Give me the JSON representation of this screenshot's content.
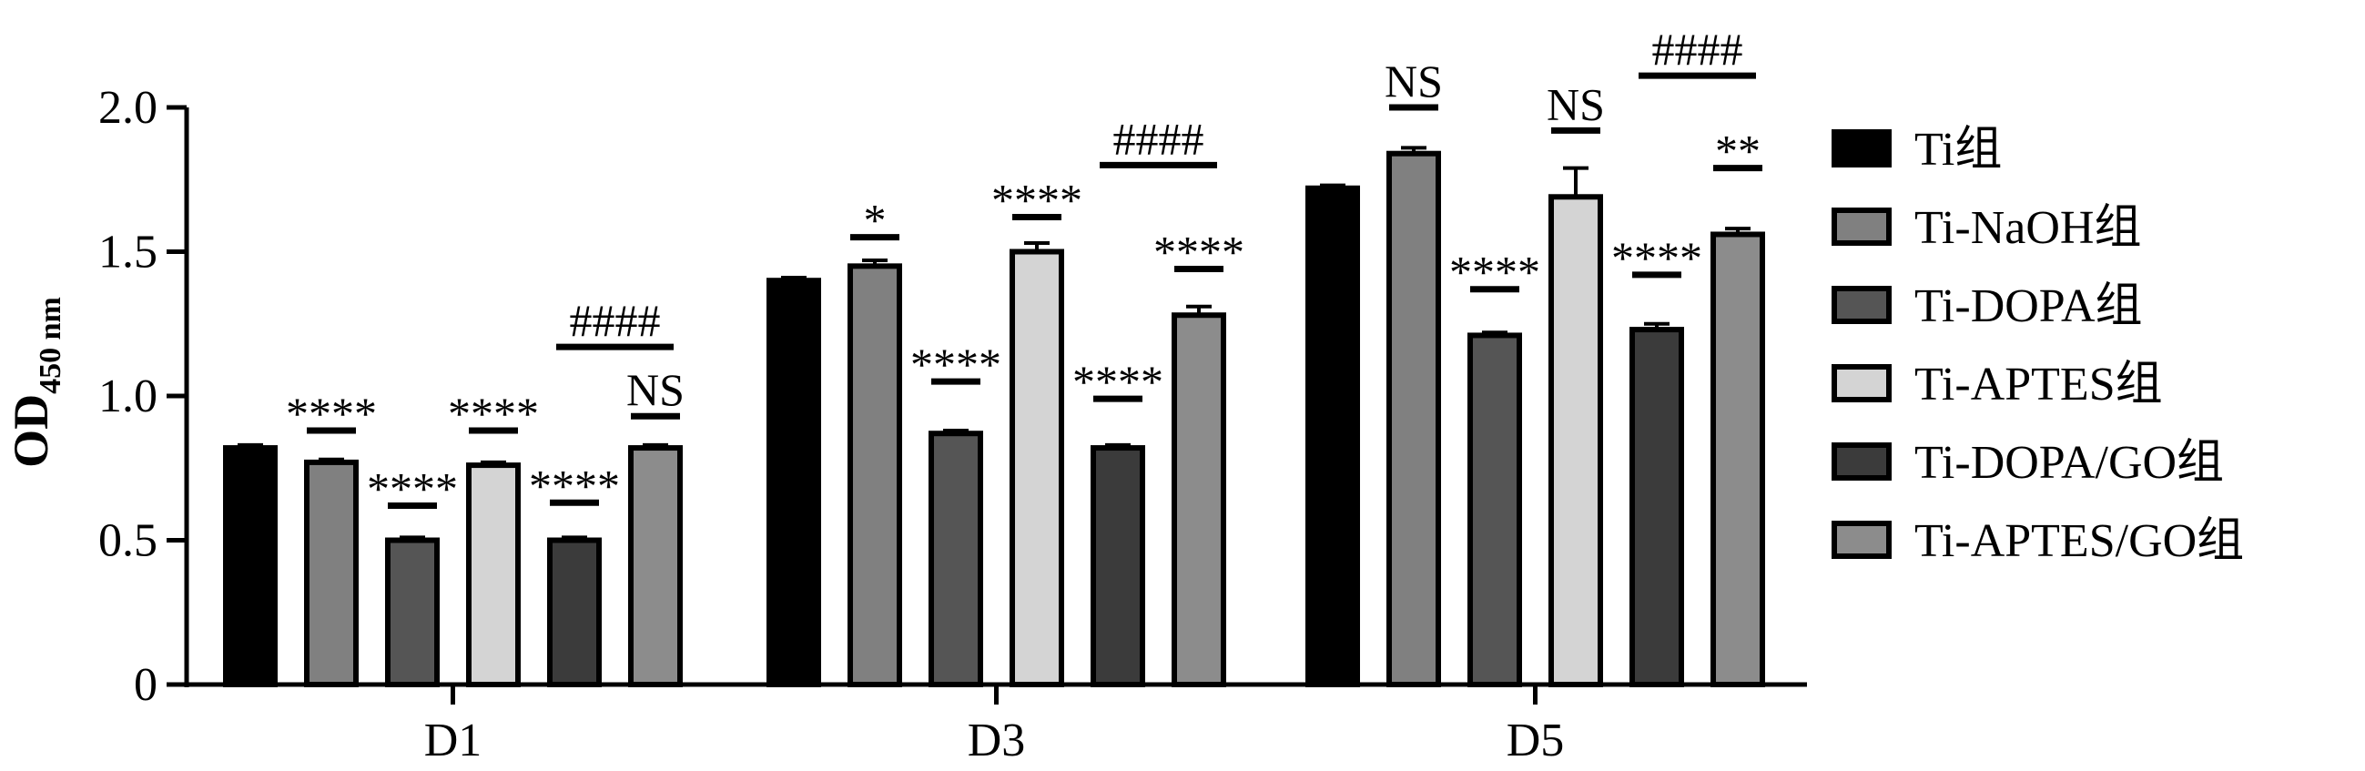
{
  "chart_data": {
    "type": "bar",
    "title": "",
    "ylabel": "OD",
    "ylabel_sub": "450 nm",
    "xlabel": "",
    "ylim": [
      0,
      2.0
    ],
    "yticks": [
      0,
      0.5,
      1.0,
      1.5,
      2.0
    ],
    "ytick_labels": [
      "0",
      "0.5",
      "1.0",
      "1.5",
      "2.0"
    ],
    "grid": false,
    "legend_position": "right",
    "categories": [
      "D1",
      "D3",
      "D5"
    ],
    "series": [
      {
        "name": "Ti组",
        "color": "#000000",
        "values": [
          0.82,
          1.4,
          1.72
        ],
        "errors": [
          0.01,
          0.01,
          0.01
        ]
      },
      {
        "name": "Ti-NaOH组",
        "color": "#808080",
        "values": [
          0.77,
          1.45,
          1.84
        ],
        "errors": [
          0.01,
          0.02,
          0.02
        ]
      },
      {
        "name": "Ti-DOPA组",
        "color": "#555555",
        "values": [
          0.5,
          0.87,
          1.21
        ],
        "errors": [
          0.01,
          0.01,
          0.01
        ]
      },
      {
        "name": "Ti-APTES组",
        "color": "#d4d4d4",
        "values": [
          0.76,
          1.5,
          1.69
        ],
        "errors": [
          0.01,
          0.03,
          0.1
        ]
      },
      {
        "name": "Ti-DOPA/GO组",
        "color": "#3b3b3b",
        "values": [
          0.5,
          0.82,
          1.23
        ],
        "errors": [
          0.01,
          0.01,
          0.02
        ]
      },
      {
        "name": "Ti-APTES/GO组",
        "color": "#8c8c8c",
        "values": [
          0.82,
          1.28,
          1.56
        ],
        "errors": [
          0.01,
          0.03,
          0.02
        ]
      }
    ],
    "annotations": [
      {
        "category": "D1",
        "series": 1,
        "text": "****",
        "y": 0.88
      },
      {
        "category": "D1",
        "series": 2,
        "text": "****",
        "y": 0.62
      },
      {
        "category": "D1",
        "series": 3,
        "text": "****",
        "y": 0.88
      },
      {
        "category": "D1",
        "series": 4,
        "text": "****",
        "y": 0.63
      },
      {
        "category": "D1",
        "series": 5,
        "text": "NS",
        "y": 0.93
      },
      {
        "category": "D1",
        "series_span": [
          4,
          5
        ],
        "text": "####",
        "y": 1.17
      },
      {
        "category": "D3",
        "series": 1,
        "text": "*",
        "y": 1.55
      },
      {
        "category": "D3",
        "series": 2,
        "text": "****",
        "y": 1.05
      },
      {
        "category": "D3",
        "series": 3,
        "text": "****",
        "y": 1.62
      },
      {
        "category": "D3",
        "series": 4,
        "text": "****",
        "y": 0.99
      },
      {
        "category": "D3",
        "series": 5,
        "text": "****",
        "y": 1.44
      },
      {
        "category": "D3",
        "series_span": [
          4,
          5
        ],
        "text": "####",
        "y": 1.8
      },
      {
        "category": "D5",
        "series": 1,
        "text": "NS",
        "y": 2.0
      },
      {
        "category": "D5",
        "series": 2,
        "text": "****",
        "y": 1.37
      },
      {
        "category": "D5",
        "series": 3,
        "text": "NS",
        "y": 1.92
      },
      {
        "category": "D5",
        "series": 4,
        "text": "****",
        "y": 1.42
      },
      {
        "category": "D5",
        "series": 5,
        "text": "**",
        "y": 1.79
      },
      {
        "category": "D5",
        "series_span": [
          4,
          5
        ],
        "text": "####",
        "y": 2.11
      }
    ]
  }
}
